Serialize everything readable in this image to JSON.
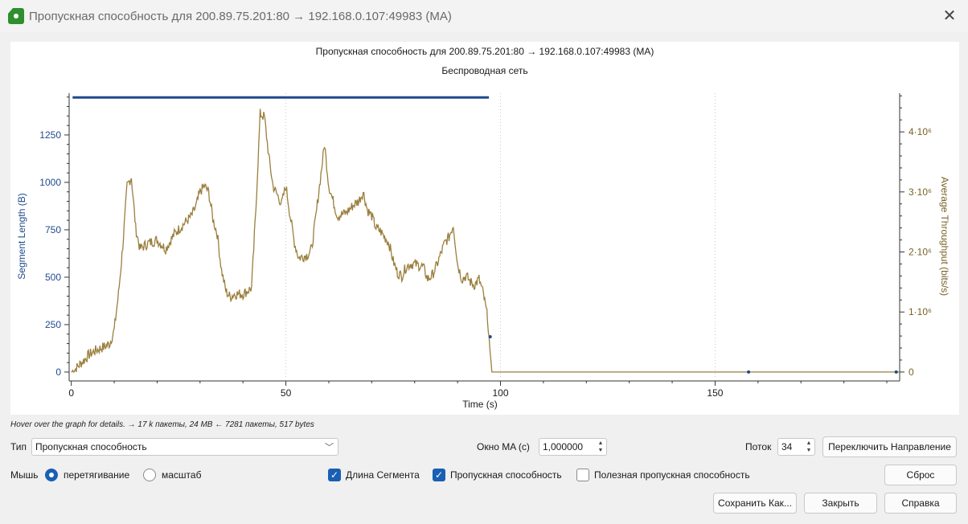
{
  "window": {
    "title": "Пропускная способность для 200.89.75.201:80 → 192.168.0.107:49983 (MA)",
    "close_glyph": "✕"
  },
  "chart_data": {
    "type": "line",
    "title": "Пропускная способность для 200.89.75.201:80 → 192.168.0.107:49983 (MA)",
    "subtitle": "Беспроводная сеть",
    "xlabel": "Time (s)",
    "ylabel_left": "Segment Length (B)",
    "ylabel_right": "Average Throughput (bits/s)",
    "xlim": [
      -0.5,
      193
    ],
    "ylim_left": [
      -30,
      1470
    ],
    "ylim_right": [
      -95000,
      4644000
    ],
    "x_ticks": [
      0,
      50,
      100,
      150
    ],
    "y_ticks_left": [
      0,
      250,
      500,
      750,
      1000,
      1250
    ],
    "y_ticks_right": [
      {
        "value": 0,
        "label": "0"
      },
      {
        "value": 1000000,
        "label": "1·10⁶"
      },
      {
        "value": 2000000,
        "label": "2·10⁶"
      },
      {
        "value": 3000000,
        "label": "3·10⁶"
      },
      {
        "value": 4000000,
        "label": "4·10⁶"
      }
    ],
    "grid": true,
    "series": [
      {
        "name": "Длина Сегмента",
        "axis": "left",
        "color": "#1f4a8c",
        "segment_line": {
          "x0": 0.3,
          "x1": 97.3,
          "y": 1448
        },
        "points": [
          [
            97.6,
            186
          ],
          [
            157.8,
            0
          ],
          [
            192.2,
            0
          ]
        ]
      },
      {
        "name": "Пропускная способность",
        "axis": "right",
        "color": "#9a7f3e",
        "points": [
          [
            0,
            0
          ],
          [
            1,
            50000
          ],
          [
            2,
            130000
          ],
          [
            3,
            200000
          ],
          [
            4,
            280000
          ],
          [
            5,
            330000
          ],
          [
            6,
            370000
          ],
          [
            7,
            400000
          ],
          [
            8,
            430000
          ],
          [
            9,
            480000
          ],
          [
            10,
            700000
          ],
          [
            11,
            1300000
          ],
          [
            12,
            2100000
          ],
          [
            13,
            3100000
          ],
          [
            14,
            3250000
          ],
          [
            15,
            2400000
          ],
          [
            16,
            2050000
          ],
          [
            18,
            2150000
          ],
          [
            20,
            2200000
          ],
          [
            22,
            2050000
          ],
          [
            24,
            2300000
          ],
          [
            26,
            2450000
          ],
          [
            28,
            2600000
          ],
          [
            29,
            2750000
          ],
          [
            30,
            3000000
          ],
          [
            31,
            3100000
          ],
          [
            32,
            3000000
          ],
          [
            33,
            2550000
          ],
          [
            34,
            2300000
          ],
          [
            35,
            1700000
          ],
          [
            36,
            1350000
          ],
          [
            37,
            1250000
          ],
          [
            38,
            1300000
          ],
          [
            40,
            1300000
          ],
          [
            42,
            1400000
          ],
          [
            43,
            2700000
          ],
          [
            44,
            4300000
          ],
          [
            45,
            4250000
          ],
          [
            46,
            3600000
          ],
          [
            47,
            3100000
          ],
          [
            48,
            2950000
          ],
          [
            49,
            2800000
          ],
          [
            50,
            3100000
          ],
          [
            51,
            2600000
          ],
          [
            52,
            2150000
          ],
          [
            53,
            1900000
          ],
          [
            55,
            1950000
          ],
          [
            56,
            2050000
          ],
          [
            57,
            2600000
          ],
          [
            58,
            3200000
          ],
          [
            59,
            3800000
          ],
          [
            60,
            3100000
          ],
          [
            62,
            2600000
          ],
          [
            64,
            2650000
          ],
          [
            66,
            2800000
          ],
          [
            67,
            2850000
          ],
          [
            68,
            3000000
          ],
          [
            69,
            2700000
          ],
          [
            70,
            2600000
          ],
          [
            71,
            2400000
          ],
          [
            72,
            2350000
          ],
          [
            74,
            2150000
          ],
          [
            75,
            1850000
          ],
          [
            76,
            1650000
          ],
          [
            77,
            1600000
          ],
          [
            78,
            1750000
          ],
          [
            79,
            1800000
          ],
          [
            80,
            1800000
          ],
          [
            82,
            1750000
          ],
          [
            83,
            1550000
          ],
          [
            84,
            1600000
          ],
          [
            85,
            1750000
          ],
          [
            86,
            1950000
          ],
          [
            87,
            2150000
          ],
          [
            88,
            2250000
          ],
          [
            89,
            2450000
          ],
          [
            90,
            1800000
          ],
          [
            91,
            1550000
          ],
          [
            92,
            1600000
          ],
          [
            93,
            1500000
          ],
          [
            94,
            1450000
          ],
          [
            95,
            1550000
          ],
          [
            96,
            1300000
          ],
          [
            97,
            900000
          ],
          [
            97.5,
            400000
          ],
          [
            98,
            0
          ],
          [
            99,
            0
          ],
          [
            193,
            0
          ]
        ]
      }
    ]
  },
  "stats": {
    "hint": "Hover over the graph for details. → 17 k пакеты, 24 MB ← 7281 пакеты, 517 bytes"
  },
  "controls": {
    "type_label": "Тип",
    "type_value": "Пропускная способность",
    "ma_label": "Окно MA (с)",
    "ma_value": "1,000000",
    "stream_label": "Поток",
    "stream_value": "34",
    "switch_direction_label": "Переключить Направление",
    "mouse_label": "Мышь",
    "mouse_drag_label": "перетягивание",
    "mouse_zoom_label": "масштаб",
    "mouse_mode": "drag",
    "segment_length_label": "Длина Сегмента",
    "segment_length_checked": true,
    "throughput_label": "Пропускная способность",
    "throughput_checked": true,
    "goodput_label": "Полезная пропускная способность",
    "goodput_checked": false,
    "reset_label": "Сброс"
  },
  "footer": {
    "save_as_label": "Сохранить Как...",
    "close_label": "Закрыть",
    "help_label": "Справка"
  }
}
